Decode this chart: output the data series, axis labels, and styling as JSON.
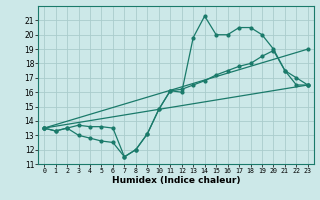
{
  "xlabel": "Humidex (Indice chaleur)",
  "bg_color": "#cce8e8",
  "grid_color": "#aacccc",
  "line_color": "#1a7a6a",
  "xlim": [
    -0.5,
    23.5
  ],
  "ylim": [
    11,
    22
  ],
  "xticks": [
    0,
    1,
    2,
    3,
    4,
    5,
    6,
    7,
    8,
    9,
    10,
    11,
    12,
    13,
    14,
    15,
    16,
    17,
    18,
    19,
    20,
    21,
    22,
    23
  ],
  "yticks": [
    11,
    12,
    13,
    14,
    15,
    16,
    17,
    18,
    19,
    20,
    21
  ],
  "line1_x": [
    0,
    1,
    2,
    3,
    4,
    5,
    6,
    7,
    8,
    9,
    10,
    11,
    12,
    13,
    14,
    15,
    16,
    17,
    18,
    19,
    20,
    21,
    22,
    23
  ],
  "line1_y": [
    13.5,
    13.3,
    13.5,
    13.7,
    13.6,
    13.6,
    13.5,
    11.5,
    12.0,
    13.1,
    14.8,
    16.1,
    16.0,
    19.8,
    21.3,
    20.0,
    20.0,
    20.5,
    20.5,
    20.0,
    19.0,
    17.5,
    16.5,
    16.5
  ],
  "line2_x": [
    0,
    1,
    2,
    3,
    4,
    5,
    6,
    7,
    8,
    9,
    10,
    11,
    12,
    13,
    14,
    15,
    16,
    17,
    18,
    19,
    20,
    21,
    22,
    23
  ],
  "line2_y": [
    13.5,
    13.3,
    13.5,
    13.0,
    12.8,
    12.6,
    12.5,
    11.5,
    12.0,
    13.1,
    14.8,
    16.1,
    16.2,
    16.5,
    16.8,
    17.2,
    17.5,
    17.8,
    18.0,
    18.5,
    18.9,
    17.5,
    17.0,
    16.5
  ],
  "line3_x": [
    0,
    23
  ],
  "line3_y": [
    13.5,
    16.5
  ],
  "line4_x": [
    0,
    23
  ],
  "line4_y": [
    13.5,
    19.0
  ]
}
